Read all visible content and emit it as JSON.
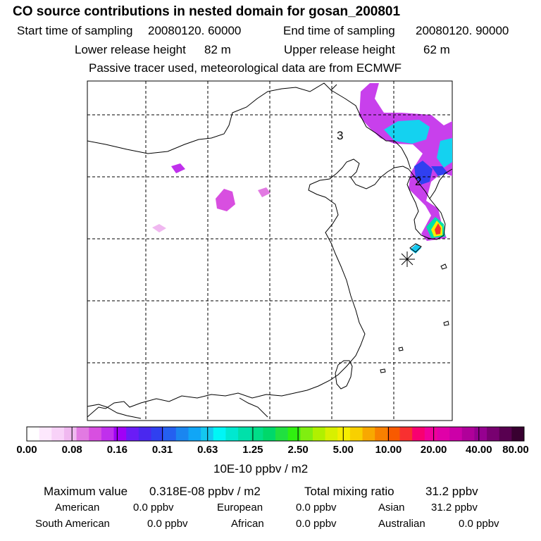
{
  "chart_data": {
    "type": "heatmap",
    "title": "CO  source contributions in nested domain for gosan_200801",
    "header": {
      "start_label": "Start time of sampling",
      "start_value": "20080120. 60000",
      "end_label": "End time of sampling",
      "end_value": "20080120. 90000",
      "lower_label": "Lower release height",
      "lower_value": "82 m",
      "upper_label": "Upper release height",
      "upper_value": "62 m",
      "note": "Passive tracer used, meteorological data are from ECMWF"
    },
    "map_labels": [
      "3",
      "2"
    ],
    "colorbar": {
      "ticks": [
        "0.00",
        "0.08",
        "0.16",
        "0.31",
        "0.63",
        "1.25",
        "2.50",
        "5.00",
        "10.00",
        "20.00",
        "40.00",
        "80.00"
      ],
      "colors": [
        "#ffffff",
        "#fde8fd",
        "#f8d2f8",
        "#f0b8f0",
        "#e27ae2",
        "#d84fe0",
        "#c030ec",
        "#a000f6",
        "#6a1cf6",
        "#4a28ef",
        "#3040f0",
        "#2460f0",
        "#1a86f0",
        "#10a6f6",
        "#14c8f0",
        "#00f6f6",
        "#00e8d0",
        "#00e0aa",
        "#00de88",
        "#00d86a",
        "#20e040",
        "#30f010",
        "#80ee10",
        "#b0f000",
        "#d8f000",
        "#f6ee00",
        "#f8d000",
        "#f8a800",
        "#f88000",
        "#f85a00",
        "#f83030",
        "#f80070",
        "#f0009a",
        "#e000a8",
        "#cc00a8",
        "#b0009a",
        "#960090",
        "#780070",
        "#580050",
        "#380030"
      ],
      "unit": "10E-10 ppbv / m2"
    },
    "stats": {
      "max_label": "Maximum value",
      "max_value": "0.318E-08 ppbv / m2",
      "total_label": "Total mixing ratio",
      "total_value": "31.2 ppbv"
    },
    "regions": [
      {
        "name": "American",
        "value": "0.0 ppbv"
      },
      {
        "name": "European",
        "value": "0.0 ppbv"
      },
      {
        "name": "Asian",
        "value": "31.2 ppbv"
      },
      {
        "name": "South American",
        "value": "0.0 ppbv"
      },
      {
        "name": "African",
        "value": "0.0 ppbv"
      },
      {
        "name": "Australian",
        "value": "0.0 ppbv"
      }
    ]
  }
}
